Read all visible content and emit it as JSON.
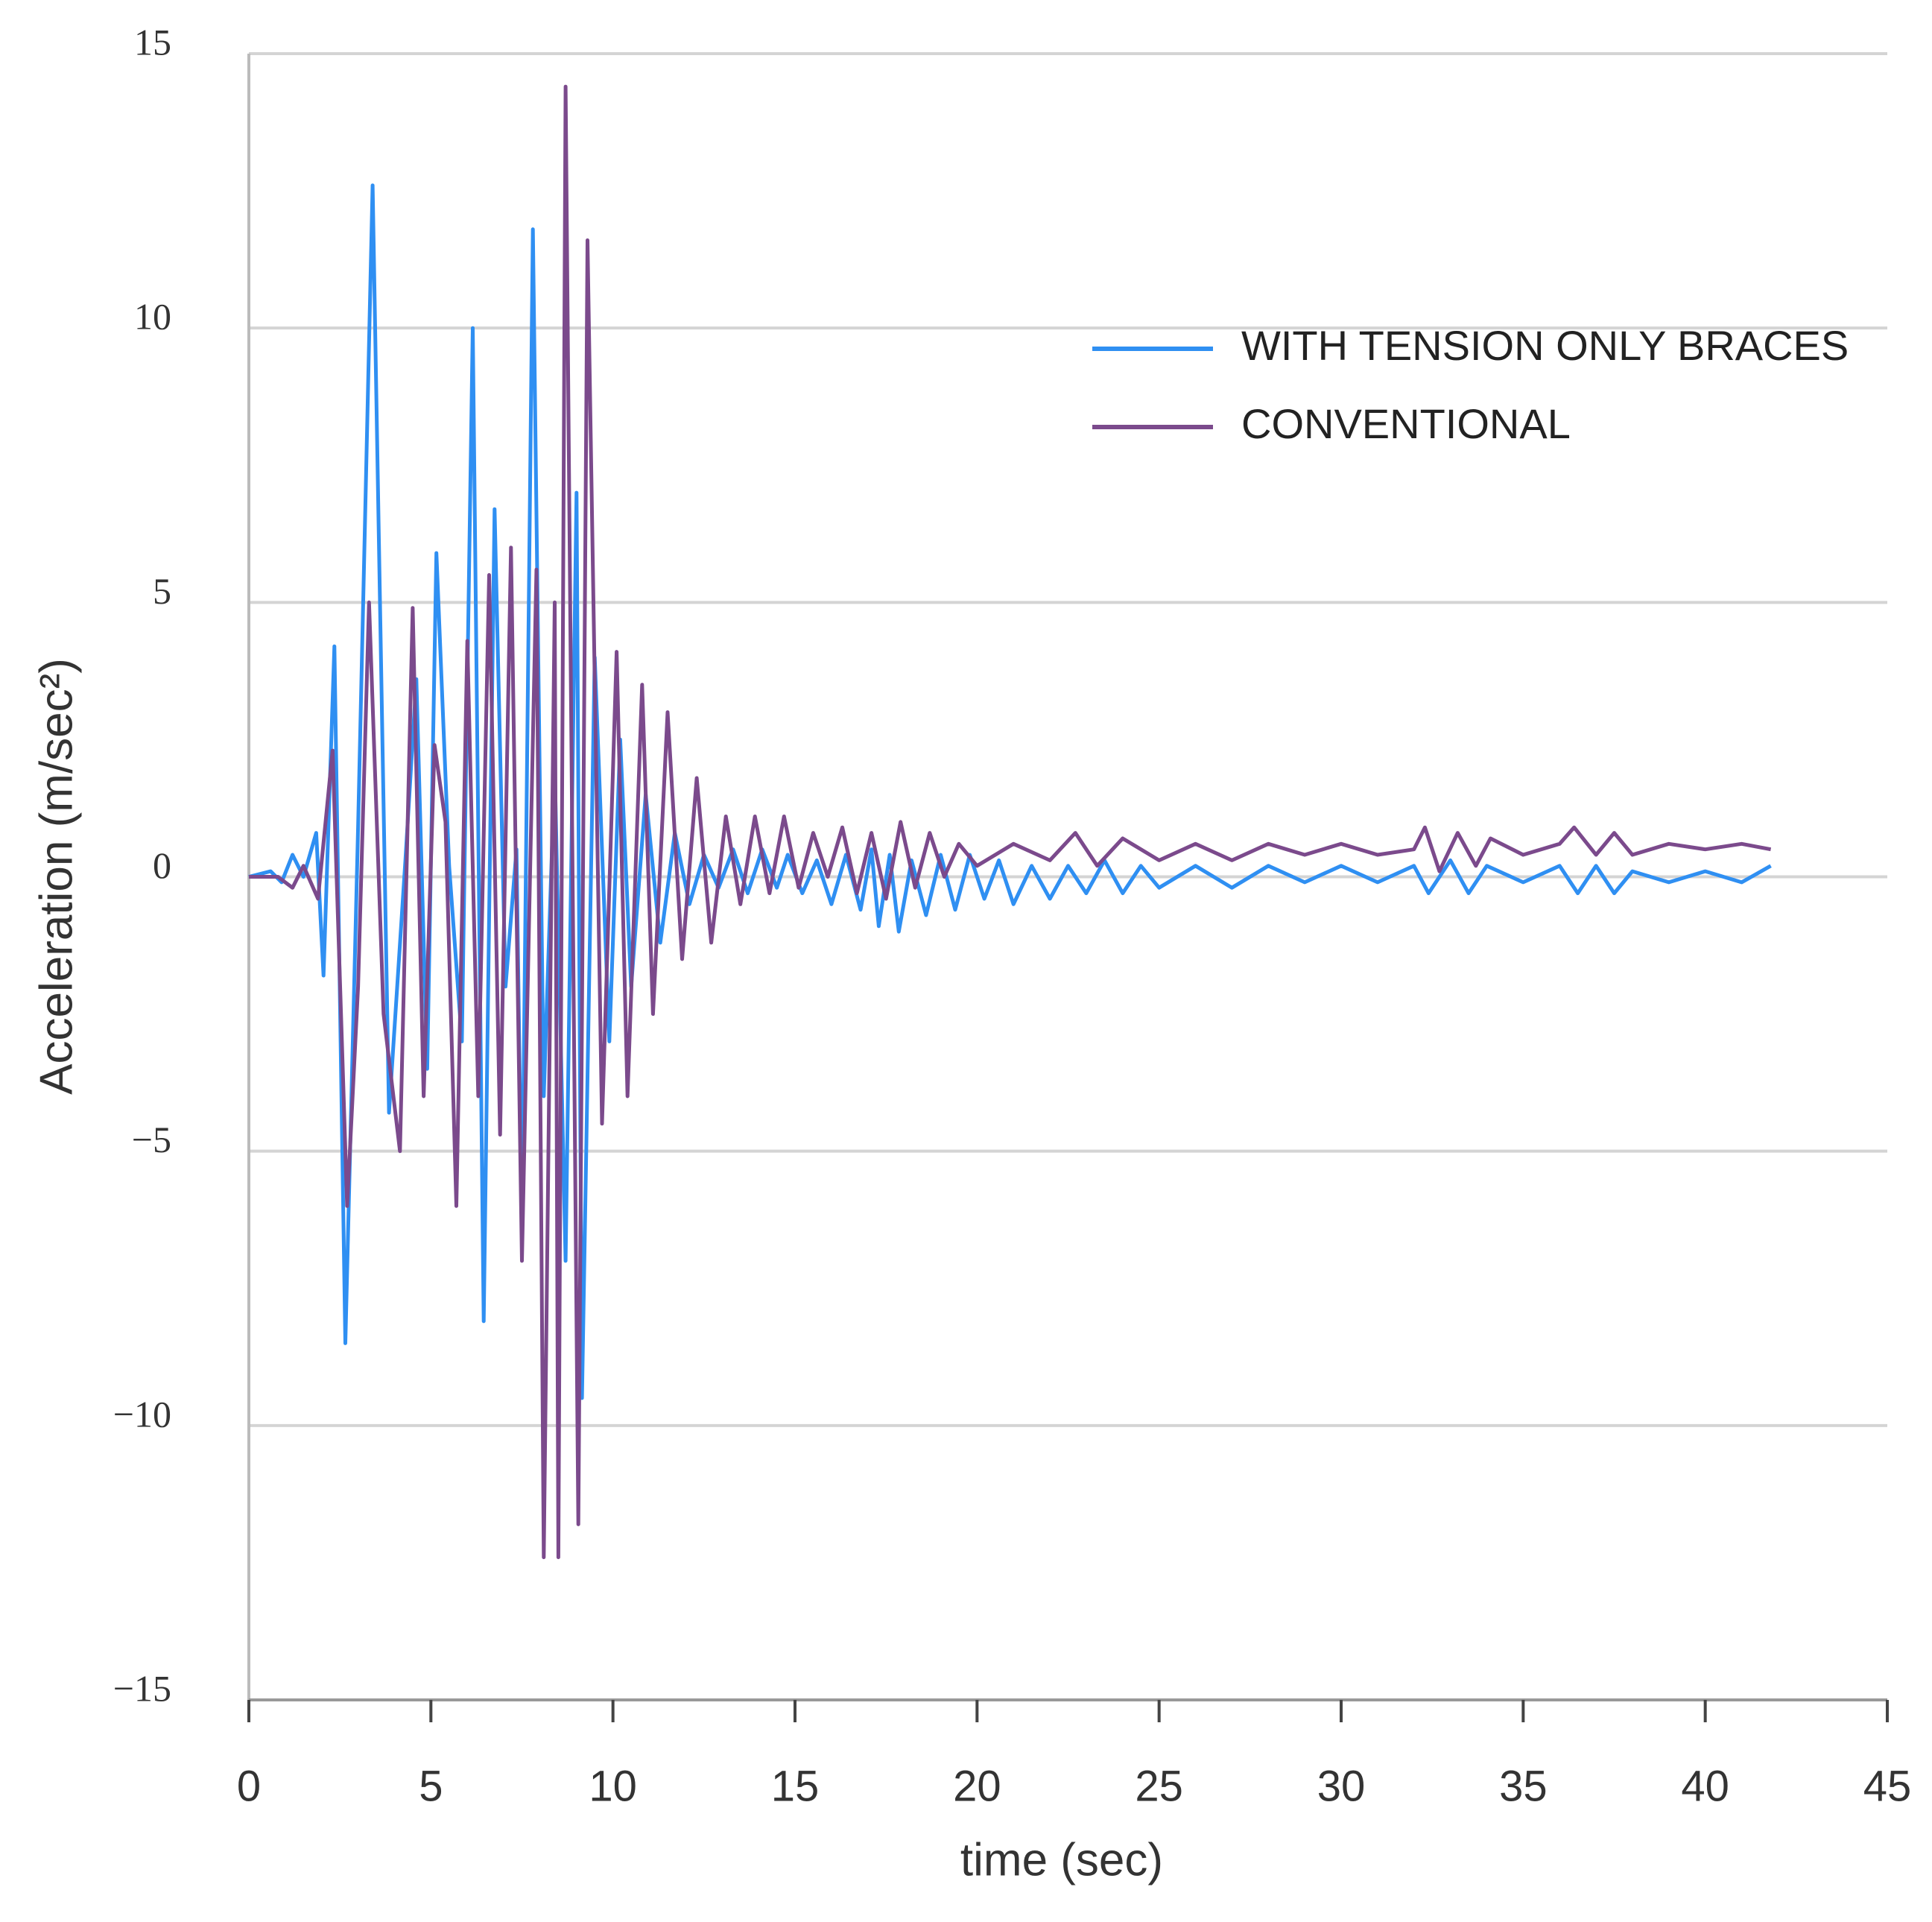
{
  "chart_data": {
    "type": "line",
    "xlabel": "time (sec)",
    "ylabel": "Acceleration (m/sec²)",
    "xlim": [
      0,
      45
    ],
    "xticks": [
      0,
      5,
      10,
      15,
      20,
      25,
      30,
      35,
      40,
      45
    ],
    "ylim": [
      -15,
      15
    ],
    "yticks": [
      {
        "value": -15,
        "label": "−15"
      },
      {
        "value": -10,
        "label": "−10"
      },
      {
        "value": -5,
        "label": "−5"
      },
      0,
      5,
      10,
      15
    ],
    "grid": true,
    "legend": "upper right",
    "series": [
      {
        "name": "WITH TENSION ONLY BRACES",
        "color": "#2f8ff2",
        "x": [
          0,
          0.6,
          0.9,
          1.2,
          1.5,
          1.85,
          2.05,
          2.35,
          2.65,
          3.0,
          3.4,
          3.85,
          4.3,
          4.6,
          4.9,
          5.15,
          5.5,
          5.85,
          6.15,
          6.45,
          6.75,
          7.05,
          7.35,
          7.5,
          7.8,
          8.1,
          8.4,
          8.7,
          9.0,
          9.15,
          9.5,
          9.9,
          10.2,
          10.5,
          10.9,
          11.3,
          11.7,
          12.1,
          12.5,
          12.9,
          13.3,
          13.7,
          14.1,
          14.5,
          14.8,
          15.2,
          15.6,
          16,
          16.4,
          16.8,
          17.1,
          17.3,
          17.6,
          17.85,
          18.2,
          18.6,
          19,
          19.4,
          19.8,
          20.2,
          20.6,
          21,
          21.5,
          22,
          22.5,
          23,
          23.5,
          24,
          24.5,
          25,
          26,
          27,
          28,
          29,
          30,
          31,
          32,
          32.4,
          33,
          33.5,
          34,
          35,
          36,
          36.5,
          37,
          37.5,
          38,
          39,
          40,
          41,
          41.8
        ],
        "values": [
          0,
          0.1,
          -0.1,
          0.4,
          0,
          0.8,
          -1.8,
          4.2,
          -8.5,
          0.9,
          12.6,
          -4.3,
          0.3,
          3.6,
          -3.5,
          5.9,
          0.2,
          -3,
          10,
          -8.1,
          6.7,
          -2,
          0.5,
          -6.5,
          11.8,
          -4,
          2,
          -7,
          7,
          -9.5,
          4,
          -3,
          2.5,
          -2,
          1.5,
          -1.2,
          0.8,
          -0.5,
          0.4,
          -0.2,
          0.5,
          -0.3,
          0.5,
          -0.2,
          0.4,
          -0.3,
          0.3,
          -0.5,
          0.4,
          -0.6,
          0.5,
          -0.9,
          0.4,
          -1,
          0.3,
          -0.7,
          0.4,
          -0.6,
          0.4,
          -0.4,
          0.3,
          -0.5,
          0.2,
          -0.4,
          0.2,
          -0.3,
          0.3,
          -0.3,
          0.2,
          -0.2,
          0.2,
          -0.2,
          0.2,
          -0.1,
          0.2,
          -0.1,
          0.2,
          -0.3,
          0.3,
          -0.3,
          0.2,
          -0.1,
          0.2,
          -0.3,
          0.2,
          -0.3,
          0.1,
          -0.1,
          0.1,
          -0.1,
          0.2
        ]
      },
      {
        "name": "CONVENTIONAL",
        "color": "#7b4a8c",
        "x": [
          0,
          0.8,
          1.2,
          1.5,
          1.9,
          2.3,
          2.7,
          3.0,
          3.3,
          3.7,
          4.15,
          4.5,
          4.8,
          5.1,
          5.4,
          5.7,
          6.0,
          6.3,
          6.6,
          6.9,
          7.2,
          7.5,
          7.9,
          8.1,
          8.4,
          8.5,
          8.7,
          9.05,
          9.3,
          9.7,
          10.1,
          10.4,
          10.8,
          11.1,
          11.5,
          11.9,
          12.3,
          12.7,
          13.1,
          13.5,
          13.9,
          14.3,
          14.7,
          15.1,
          15.5,
          15.9,
          16.3,
          16.7,
          17.1,
          17.5,
          17.9,
          18.3,
          18.7,
          19.1,
          19.5,
          20,
          21,
          22,
          22.7,
          23.3,
          24,
          25,
          26,
          27,
          28,
          29,
          30,
          31,
          32,
          32.3,
          32.7,
          33.2,
          33.7,
          34.1,
          35,
          36,
          36.4,
          37,
          37.5,
          38,
          39,
          40,
          41,
          41.8
        ],
        "values": [
          0,
          0,
          -0.2,
          0.2,
          -0.4,
          2.3,
          -6,
          -2,
          5,
          -2.5,
          -5,
          4.9,
          -4,
          2.4,
          1,
          -6,
          4.3,
          -4,
          5.5,
          -4.7,
          6,
          -7,
          5.6,
          -12.4,
          5,
          -12.4,
          14.4,
          -11.8,
          11.6,
          -4.5,
          4.1,
          -4,
          3.5,
          -2.5,
          3,
          -1.5,
          1.8,
          -1.2,
          1.1,
          -0.5,
          1.1,
          -0.3,
          1.1,
          -0.2,
          0.8,
          0,
          0.9,
          -0.3,
          0.8,
          -0.4,
          1,
          -0.2,
          0.8,
          0,
          0.6,
          0.2,
          0.6,
          0.3,
          0.8,
          0.2,
          0.7,
          0.3,
          0.6,
          0.3,
          0.6,
          0.4,
          0.6,
          0.4,
          0.5,
          0.9,
          0.1,
          0.8,
          0.2,
          0.7,
          0.4,
          0.6,
          0.9,
          0.4,
          0.8,
          0.4,
          0.6,
          0.5,
          0.6,
          0.5
        ]
      }
    ]
  }
}
